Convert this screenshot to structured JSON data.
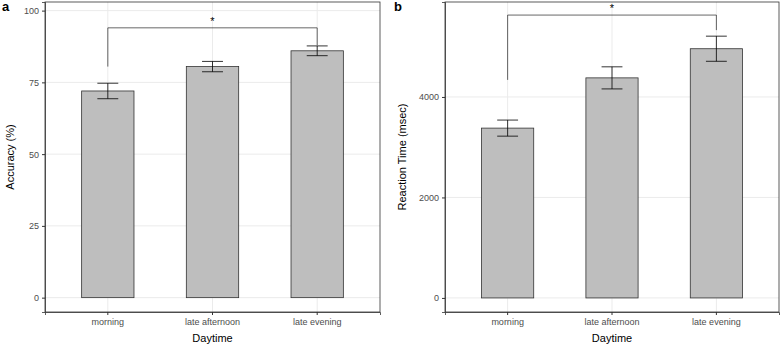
{
  "chart_data": [
    {
      "type": "bar",
      "panel_label": "a",
      "x_label": "Daytime",
      "y_label": "Accuracy (%)",
      "categories": [
        "morning",
        "late afternoon",
        "late evening"
      ],
      "values": [
        72,
        80.5,
        86
      ],
      "errors": [
        2.7,
        1.8,
        1.7
      ],
      "color": "#bebebe",
      "ylim": [
        -5,
        103
      ],
      "yticks": [
        0,
        25,
        50,
        75,
        100
      ],
      "grid": true,
      "annotations": [
        {
          "text": "*",
          "from": "morning",
          "to": "late evening",
          "y": 94,
          "legs": [
            80.5,
            88
          ]
        }
      ]
    },
    {
      "type": "bar",
      "panel_label": "b",
      "x_label": "Daytime",
      "y_label": "Reaction Time (msec)",
      "categories": [
        "morning",
        "late afternoon",
        "late evening"
      ],
      "values": [
        3380,
        4380,
        4960
      ],
      "errors": [
        160,
        220,
        250
      ],
      "color": "#bebebe",
      "ylim": [
        -280,
        5890
      ],
      "yticks": [
        0,
        2000,
        4000
      ],
      "grid": true,
      "annotations": [
        {
          "text": "*",
          "from": "morning",
          "to": "late evening",
          "y": 5630,
          "legs": [
            4340,
            5330
          ]
        }
      ]
    }
  ]
}
